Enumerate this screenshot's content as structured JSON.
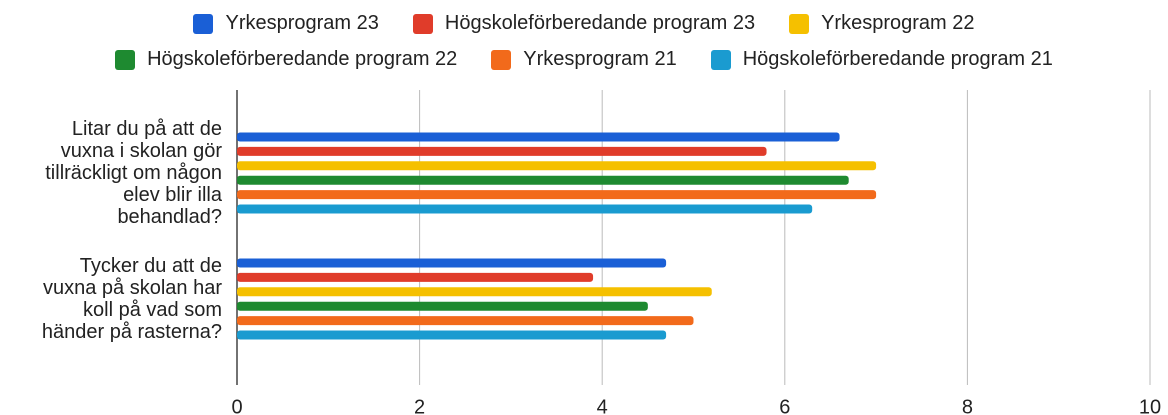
{
  "chart_data": {
    "type": "bar",
    "orientation": "horizontal",
    "categories": [
      "Litar du på att de\nvuxna i skolan gör\ntillräckligt om någon\nelev blir illa\nbehandlad?",
      "Tycker du att de\nvuxna på skolan har\nkoll på vad som\nhänder på rasterna?"
    ],
    "series": [
      {
        "name": "Yrkesprogram 23",
        "color": "#1a5fd6",
        "values": [
          6.6,
          4.7
        ]
      },
      {
        "name": "Högskoleförberedande program 23",
        "color": "#e03c2a",
        "values": [
          5.8,
          3.9
        ]
      },
      {
        "name": "Yrkesprogram 22",
        "color": "#f5c000",
        "values": [
          7.0,
          5.2
        ]
      },
      {
        "name": "Högskoleförberedande program 22",
        "color": "#1e8a30",
        "values": [
          6.7,
          4.5
        ]
      },
      {
        "name": "Yrkesprogram 21",
        "color": "#f26a1b",
        "values": [
          7.0,
          5.0
        ]
      },
      {
        "name": "Högskoleförberedande program 21",
        "color": "#1a9bd0",
        "values": [
          6.3,
          4.7
        ]
      }
    ],
    "xlim": [
      0,
      10
    ],
    "xticks": [
      0,
      2,
      4,
      6,
      8,
      10
    ],
    "grid": true,
    "legend": "top"
  }
}
